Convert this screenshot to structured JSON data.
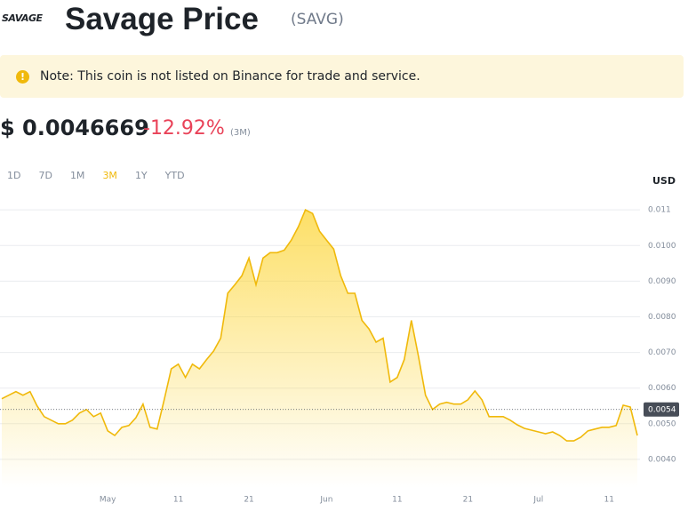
{
  "header": {
    "logo": "SAVAGE",
    "title": "Savage Price",
    "symbol": "(SAVG)"
  },
  "note": "Note: This coin is not listed on Binance for trade and service.",
  "price": {
    "value": "$ 0.0046669",
    "change": "-12.92%",
    "period": "(3M)"
  },
  "range_tabs": [
    "1D",
    "7D",
    "1M",
    "3M",
    "1Y",
    "YTD"
  ],
  "active_tab": "3M",
  "currency": "USD",
  "chart_data": {
    "type": "area",
    "color": "#f0b90b",
    "categories": [
      null,
      null,
      null,
      null,
      null,
      null,
      null,
      null,
      null,
      null,
      null,
      null,
      null,
      null,
      null,
      "May",
      null,
      null,
      null,
      null,
      null,
      null,
      null,
      null,
      null,
      "11",
      null,
      null,
      null,
      null,
      null,
      null,
      null,
      null,
      null,
      "21",
      null,
      null,
      null,
      null,
      null,
      null,
      null,
      null,
      null,
      null,
      "Jun",
      null,
      null,
      null,
      null,
      null,
      null,
      null,
      null,
      null,
      "11",
      null,
      null,
      null,
      null,
      null,
      null,
      null,
      null,
      null,
      "21",
      null,
      null,
      null,
      null,
      null,
      null,
      null,
      null,
      null,
      "Jul",
      null,
      null,
      null,
      null,
      null,
      null,
      null,
      null,
      null,
      "11",
      null,
      null,
      null,
      null
    ],
    "values": [
      0.0057,
      0.0058,
      0.0059,
      0.0058,
      0.0059,
      0.0055,
      0.0052,
      0.0051,
      0.005,
      0.005,
      0.0051,
      0.0053,
      0.0054,
      0.0052,
      0.0053,
      0.0048,
      0.00467,
      0.0049,
      0.00495,
      0.00517,
      0.00555,
      0.0049,
      0.00485,
      0.00567,
      0.00654,
      0.00667,
      0.0063,
      0.00667,
      0.00654,
      0.0068,
      0.00704,
      0.0074,
      0.00866,
      0.0089,
      0.00915,
      0.00965,
      0.0089,
      0.00965,
      0.0098,
      0.0098,
      0.00987,
      0.01015,
      0.01053,
      0.011,
      0.0109,
      0.0104,
      0.01015,
      0.0099,
      0.00915,
      0.00866,
      0.00866,
      0.0079,
      0.00766,
      0.00729,
      0.0074,
      0.00617,
      0.0063,
      0.0068,
      0.0079,
      0.0069,
      0.0058,
      0.0054,
      0.00555,
      0.0056,
      0.00555,
      0.00555,
      0.00567,
      0.00592,
      0.00567,
      0.0052,
      0.0052,
      0.0052,
      0.0051,
      0.00497,
      0.00487,
      0.00482,
      0.00477,
      0.00472,
      0.00477,
      0.00467,
      0.00452,
      0.00452,
      0.00462,
      0.0048,
      0.00485,
      0.0049,
      0.0049,
      0.00495,
      0.00552,
      0.00547,
      0.00467
    ],
    "ylim": [
      0.0032,
      0.0123
    ],
    "yticks": [
      {
        "value": 0.004,
        "label": "0.0040"
      },
      {
        "value": 0.005,
        "label": "0.0050"
      },
      {
        "value": 0.006,
        "label": "0.0060"
      },
      {
        "value": 0.007,
        "label": "0.0070"
      },
      {
        "value": 0.008,
        "label": "0.0080"
      },
      {
        "value": 0.009,
        "label": "0.0090"
      },
      {
        "value": 0.01,
        "label": "0.0100"
      },
      0.011
    ],
    "reference_value": 0.0054,
    "grid": true
  }
}
